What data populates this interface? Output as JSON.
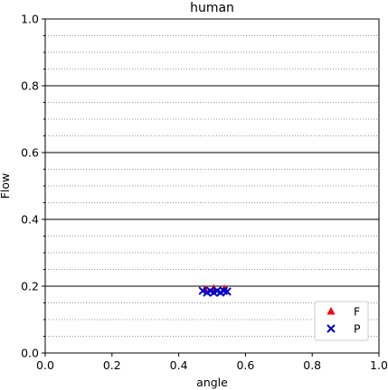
{
  "chart_data": {
    "type": "scatter",
    "title": "human",
    "xlabel": "angle",
    "ylabel": "Flow",
    "xlim": [
      0.0,
      1.0
    ],
    "ylim": [
      0.0,
      1.0
    ],
    "x_ticks": [
      0.0,
      0.2,
      0.4,
      0.6,
      0.8,
      1.0
    ],
    "y_ticks": [
      0.0,
      0.2,
      0.4,
      0.6,
      0.8,
      1.0
    ],
    "x_tick_labels": [
      "0.0",
      "0.2",
      "0.4",
      "0.6",
      "0.8",
      "1.0"
    ],
    "y_tick_labels": [
      "0.0",
      "0.2",
      "0.4",
      "0.6",
      "0.8",
      "1.0"
    ],
    "y_minor_ticks": [
      0.05,
      0.1,
      0.15,
      0.25,
      0.3,
      0.35,
      0.45,
      0.5,
      0.55,
      0.65,
      0.7,
      0.75,
      0.85,
      0.9,
      0.95
    ],
    "grid": "major horizontal solid, minor horizontal dotted",
    "legend": "lower-right",
    "series": [
      {
        "name": "F",
        "marker": "triangle",
        "color": "#ff0000",
        "x": [
          0.478,
          0.505,
          0.537
        ],
        "y": [
          0.19,
          0.193,
          0.192
        ]
      },
      {
        "name": "P",
        "marker": "x",
        "color": "#0000cc",
        "x": [
          0.472,
          0.485,
          0.495,
          0.505,
          0.515,
          0.525,
          0.535,
          0.545
        ],
        "y": [
          0.186,
          0.181,
          0.186,
          0.181,
          0.186,
          0.181,
          0.186,
          0.184
        ]
      }
    ]
  }
}
